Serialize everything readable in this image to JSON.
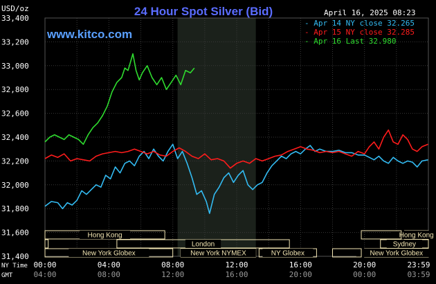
{
  "header": {
    "title": "24 Hour Spot Silver (Bid)",
    "y_unit": "USD/oz",
    "date_time": "April 16, 2025 08:23",
    "site": "www.kitco.com"
  },
  "colors": {
    "background": "#000000",
    "grid": "#3a3a3a",
    "highlight": "#1b211b",
    "title": "#5a6cff",
    "site": "#5aa0ff",
    "apr14": "#33bbf2",
    "apr15": "#ff1c1c",
    "apr16": "#2fdc2f",
    "market_fill": "#f3e6b3",
    "market_text": "#000000"
  },
  "legend": [
    {
      "text": "Apr 14 NY close 32.265",
      "color_key": "apr14"
    },
    {
      "text": "Apr 15 NY close 32.285",
      "color_key": "apr15"
    },
    {
      "text": "Apr 16 Last 32.980",
      "color_key": "apr16"
    }
  ],
  "time_axis": {
    "ny_label": "NY Time",
    "gmt_label": "GMT",
    "ny_ticks": [
      "00:00",
      "04:00",
      "08:00",
      "12:00",
      "16:00",
      "20:00",
      "23:59"
    ],
    "gmt_ticks": [
      "04:00",
      "08:00",
      "12:00",
      "16:00",
      "20:00",
      "00:00",
      "03:59"
    ]
  },
  "chart_data": {
    "type": "line",
    "title": "24 Hour Spot Silver (Bid)",
    "xlabel": "NY Time",
    "ylabel": "USD/oz",
    "xlim": [
      0,
      24
    ],
    "ylim": [
      31.4,
      33.4
    ],
    "y_ticks": [
      "31,400",
      "31,600",
      "31,800",
      "32,000",
      "32,200",
      "32,400",
      "32,600",
      "32,800",
      "33,000",
      "33,200",
      "33,400"
    ],
    "highlight_band_hours": [
      8.3,
      13.2
    ],
    "grid": true,
    "legend_position": "top-right",
    "series": [
      {
        "name": "Apr 14 NY close 32.265",
        "color_key": "apr14",
        "points": [
          [
            0,
            31.82
          ],
          [
            0.4,
            31.86
          ],
          [
            0.8,
            31.85
          ],
          [
            1.1,
            31.8
          ],
          [
            1.4,
            31.85
          ],
          [
            1.7,
            31.83
          ],
          [
            2.0,
            31.87
          ],
          [
            2.3,
            31.95
          ],
          [
            2.6,
            31.92
          ],
          [
            2.9,
            31.96
          ],
          [
            3.2,
            32.0
          ],
          [
            3.5,
            31.98
          ],
          [
            3.8,
            32.08
          ],
          [
            4.1,
            32.05
          ],
          [
            4.4,
            32.15
          ],
          [
            4.7,
            32.1
          ],
          [
            5.0,
            32.18
          ],
          [
            5.3,
            32.2
          ],
          [
            5.6,
            32.16
          ],
          [
            5.9,
            32.24
          ],
          [
            6.2,
            32.28
          ],
          [
            6.5,
            32.22
          ],
          [
            6.8,
            32.3
          ],
          [
            7.1,
            32.24
          ],
          [
            7.4,
            32.2
          ],
          [
            7.7,
            32.28
          ],
          [
            8.0,
            32.34
          ],
          [
            8.3,
            32.22
          ],
          [
            8.6,
            32.28
          ],
          [
            8.9,
            32.18
          ],
          [
            9.2,
            32.06
          ],
          [
            9.5,
            31.92
          ],
          [
            9.8,
            31.95
          ],
          [
            10.1,
            31.86
          ],
          [
            10.3,
            31.76
          ],
          [
            10.6,
            31.92
          ],
          [
            10.9,
            31.98
          ],
          [
            11.2,
            32.06
          ],
          [
            11.5,
            32.1
          ],
          [
            11.8,
            32.02
          ],
          [
            12.1,
            32.08
          ],
          [
            12.4,
            32.12
          ],
          [
            12.7,
            32.0
          ],
          [
            13.0,
            31.96
          ],
          [
            13.3,
            32.0
          ],
          [
            13.6,
            32.02
          ],
          [
            13.9,
            32.1
          ],
          [
            14.2,
            32.16
          ],
          [
            14.5,
            32.2
          ],
          [
            14.8,
            32.24
          ],
          [
            15.1,
            32.22
          ],
          [
            15.4,
            32.26
          ],
          [
            15.7,
            32.28
          ],
          [
            16.0,
            32.26
          ],
          [
            16.3,
            32.3
          ],
          [
            16.6,
            32.33
          ],
          [
            16.9,
            32.28
          ],
          [
            17.2,
            32.3
          ],
          [
            17.6,
            32.28
          ],
          [
            18.0,
            32.28
          ],
          [
            18.4,
            32.29
          ],
          [
            18.8,
            32.27
          ],
          [
            19.2,
            32.27
          ],
          [
            19.6,
            32.25
          ],
          [
            20.0,
            32.25
          ],
          [
            20.3,
            32.23
          ],
          [
            20.6,
            32.21
          ],
          [
            20.9,
            32.24
          ],
          [
            21.2,
            32.2
          ],
          [
            21.5,
            32.18
          ],
          [
            21.8,
            32.23
          ],
          [
            22.1,
            32.2
          ],
          [
            22.4,
            32.18
          ],
          [
            22.7,
            32.2
          ],
          [
            23.0,
            32.19
          ],
          [
            23.3,
            32.15
          ],
          [
            23.6,
            32.2
          ],
          [
            23.98,
            32.21
          ]
        ]
      },
      {
        "name": "Apr 15 NY close 32.285",
        "color_key": "apr15",
        "points": [
          [
            0,
            32.22
          ],
          [
            0.4,
            32.25
          ],
          [
            0.8,
            32.23
          ],
          [
            1.2,
            32.26
          ],
          [
            1.6,
            32.2
          ],
          [
            2.0,
            32.22
          ],
          [
            2.4,
            32.21
          ],
          [
            2.8,
            32.2
          ],
          [
            3.2,
            32.24
          ],
          [
            3.6,
            32.26
          ],
          [
            4.0,
            32.27
          ],
          [
            4.4,
            32.28
          ],
          [
            4.8,
            32.27
          ],
          [
            5.2,
            32.28
          ],
          [
            5.6,
            32.3
          ],
          [
            6.0,
            32.28
          ],
          [
            6.4,
            32.26
          ],
          [
            6.8,
            32.28
          ],
          [
            7.2,
            32.25
          ],
          [
            7.6,
            32.24
          ],
          [
            8.0,
            32.28
          ],
          [
            8.4,
            32.31
          ],
          [
            8.8,
            32.28
          ],
          [
            9.2,
            32.24
          ],
          [
            9.6,
            32.22
          ],
          [
            10.0,
            32.26
          ],
          [
            10.4,
            32.21
          ],
          [
            10.8,
            32.22
          ],
          [
            11.2,
            32.2
          ],
          [
            11.6,
            32.14
          ],
          [
            12.0,
            32.18
          ],
          [
            12.4,
            32.2
          ],
          [
            12.8,
            32.18
          ],
          [
            13.2,
            32.22
          ],
          [
            13.6,
            32.2
          ],
          [
            14.0,
            32.22
          ],
          [
            14.4,
            32.24
          ],
          [
            14.8,
            32.25
          ],
          [
            15.2,
            32.28
          ],
          [
            15.6,
            32.3
          ],
          [
            16.0,
            32.32
          ],
          [
            16.4,
            32.3
          ],
          [
            16.8,
            32.29
          ],
          [
            17.2,
            32.27
          ],
          [
            17.6,
            32.28
          ],
          [
            18.0,
            32.27
          ],
          [
            18.4,
            32.28
          ],
          [
            18.8,
            32.26
          ],
          [
            19.2,
            32.24
          ],
          [
            19.6,
            32.28
          ],
          [
            20.0,
            32.26
          ],
          [
            20.3,
            32.32
          ],
          [
            20.6,
            32.36
          ],
          [
            20.9,
            32.3
          ],
          [
            21.2,
            32.4
          ],
          [
            21.5,
            32.46
          ],
          [
            21.8,
            32.36
          ],
          [
            22.1,
            32.34
          ],
          [
            22.4,
            32.42
          ],
          [
            22.7,
            32.38
          ],
          [
            23.0,
            32.3
          ],
          [
            23.3,
            32.28
          ],
          [
            23.6,
            32.32
          ],
          [
            23.98,
            32.34
          ]
        ]
      },
      {
        "name": "Apr 16 Last 32.980",
        "color_key": "apr16",
        "points": [
          [
            0,
            32.36
          ],
          [
            0.3,
            32.4
          ],
          [
            0.6,
            32.42
          ],
          [
            0.9,
            32.4
          ],
          [
            1.2,
            32.38
          ],
          [
            1.5,
            32.42
          ],
          [
            1.8,
            32.4
          ],
          [
            2.1,
            32.38
          ],
          [
            2.4,
            32.34
          ],
          [
            2.7,
            32.42
          ],
          [
            3.0,
            32.48
          ],
          [
            3.3,
            32.52
          ],
          [
            3.6,
            32.58
          ],
          [
            3.9,
            32.66
          ],
          [
            4.2,
            32.78
          ],
          [
            4.5,
            32.86
          ],
          [
            4.8,
            32.9
          ],
          [
            5.0,
            32.98
          ],
          [
            5.2,
            32.96
          ],
          [
            5.5,
            33.1
          ],
          [
            5.7,
            32.96
          ],
          [
            5.9,
            32.88
          ],
          [
            6.1,
            32.94
          ],
          [
            6.4,
            33.0
          ],
          [
            6.7,
            32.9
          ],
          [
            7.0,
            32.84
          ],
          [
            7.3,
            32.9
          ],
          [
            7.6,
            32.8
          ],
          [
            7.9,
            32.86
          ],
          [
            8.2,
            32.92
          ],
          [
            8.5,
            32.84
          ],
          [
            8.8,
            32.96
          ],
          [
            9.1,
            32.94
          ],
          [
            9.35,
            32.98
          ]
        ]
      }
    ],
    "market_sessions": [
      {
        "name": "Hong Kong",
        "row": 0,
        "start": 0,
        "end": 7.5
      },
      {
        "name": "",
        "row": 1,
        "start": 0,
        "end": 0.2
      },
      {
        "name": "London",
        "row": 1,
        "start": 4.5,
        "end": 15.3
      },
      {
        "name": "New York Globex",
        "row": 2,
        "start": 0,
        "end": 8.0
      },
      {
        "name": "New York NYMEX",
        "row": 2,
        "start": 8.5,
        "end": 13.2
      },
      {
        "name": "NY Globex",
        "row": 2,
        "start": 13.4,
        "end": 17.0
      },
      {
        "name": "Hong Kong",
        "row": 0,
        "start": 22.5,
        "end": 24
      },
      {
        "name": "Sydney",
        "row": 1,
        "start": 21.0,
        "end": 24
      },
      {
        "name": "New York Globex",
        "row": 2,
        "start": 20.0,
        "end": 24
      },
      {
        "name": "",
        "row": 2,
        "start": 18.0,
        "end": 19.8
      },
      {
        "name": "",
        "row": 0,
        "start": 19.8,
        "end": 22.3
      }
    ]
  }
}
